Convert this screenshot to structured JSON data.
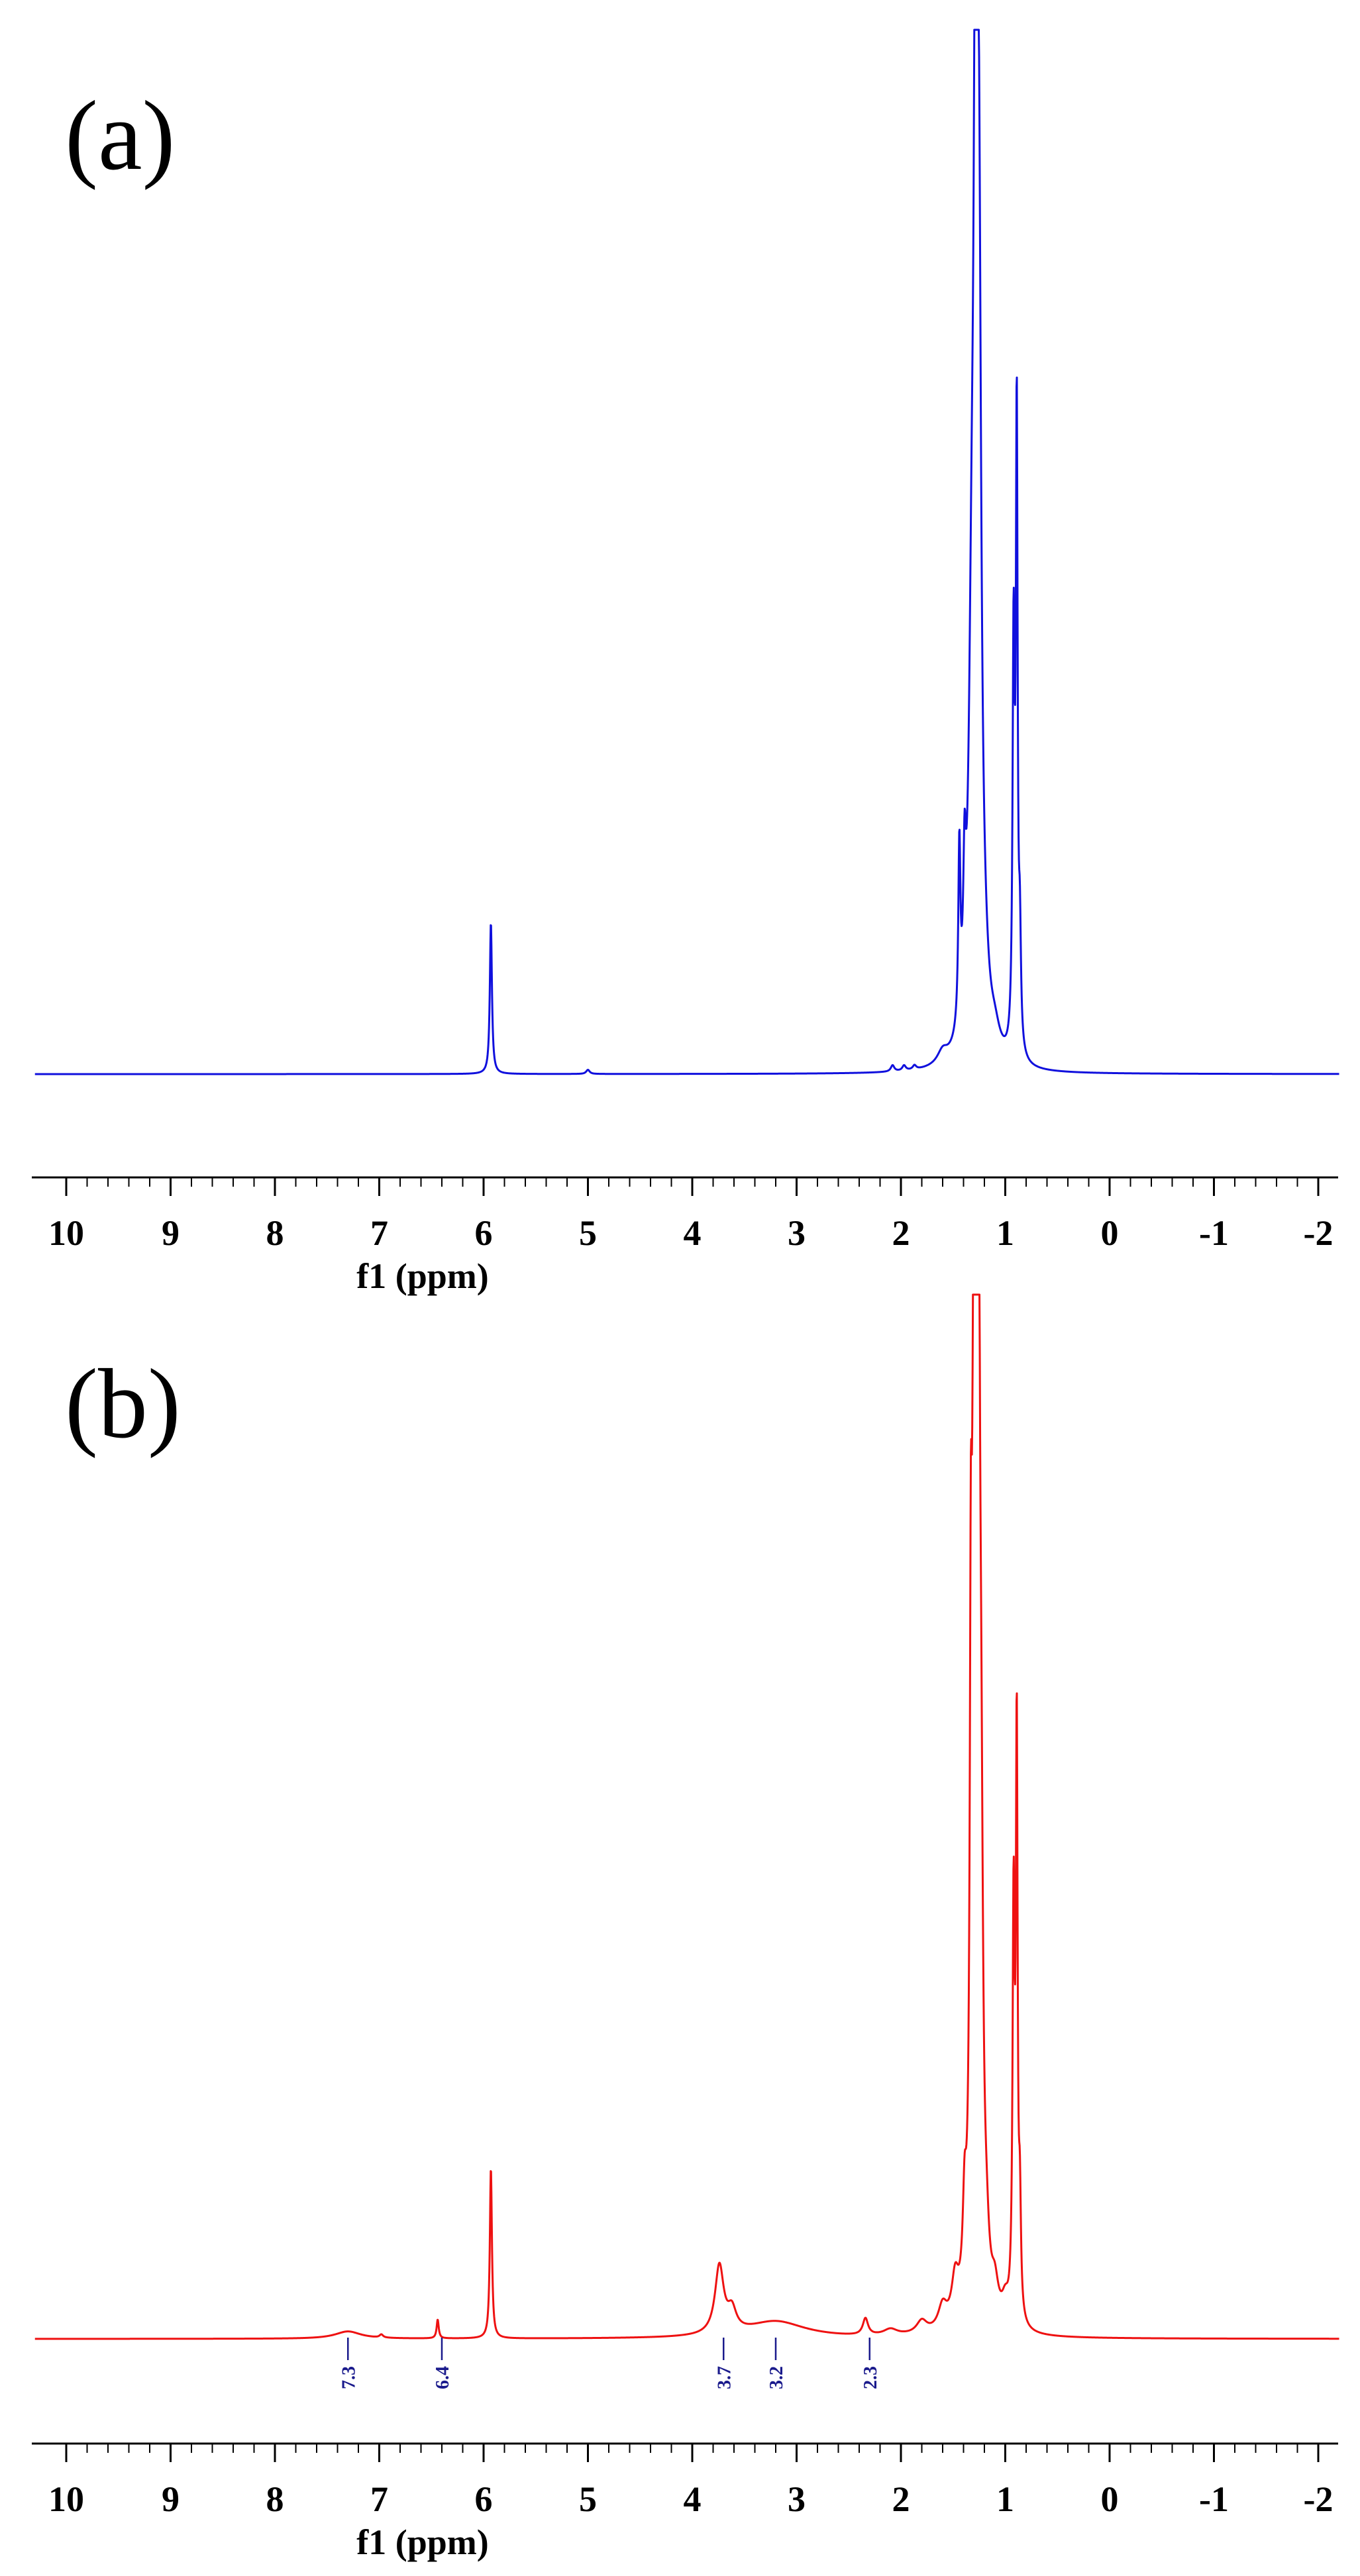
{
  "chart_data": [
    {
      "type": "line",
      "panel_label": "(a)",
      "xlabel": "f1 (ppm)",
      "ylabel": "",
      "x_reversed": true,
      "xlim": [
        10.3,
        -2.2
      ],
      "ylim": [
        0,
        1
      ],
      "x_ticks": [
        "10",
        "9",
        "8",
        "7",
        "6",
        "5",
        "4",
        "3",
        "2",
        "1",
        "0",
        "-1",
        "-2"
      ],
      "x_tick_values": [
        10,
        9,
        8,
        7,
        6,
        5,
        4,
        3,
        2,
        1,
        0,
        -1,
        -2
      ],
      "color": "#1010dd",
      "grid": false,
      "legend": "none",
      "peaks": [
        {
          "ppm": 5.93,
          "height": 0.145,
          "width": 0.012
        },
        {
          "ppm": 5.0,
          "height": 0.004,
          "width": 0.02
        },
        {
          "ppm": 2.08,
          "height": 0.006,
          "width": 0.02
        },
        {
          "ppm": 1.97,
          "height": 0.005,
          "width": 0.02
        },
        {
          "ppm": 1.87,
          "height": 0.004,
          "width": 0.02
        },
        {
          "ppm": 1.6,
          "height": 0.012,
          "width": 0.06
        },
        {
          "ppm": 1.44,
          "height": 0.17,
          "width": 0.012
        },
        {
          "ppm": 1.39,
          "height": 0.12,
          "width": 0.015
        },
        {
          "ppm": 1.32,
          "height": 0.35,
          "width": 0.035
        },
        {
          "ppm": 1.28,
          "height": 1.2,
          "width": 0.018
        },
        {
          "ppm": 1.25,
          "height": 0.55,
          "width": 0.025
        },
        {
          "ppm": 1.2,
          "height": 0.04,
          "width": 0.05
        },
        {
          "ppm": 1.1,
          "height": 0.02,
          "width": 0.06
        },
        {
          "ppm": 0.92,
          "height": 0.39,
          "width": 0.012
        },
        {
          "ppm": 0.89,
          "height": 0.6,
          "width": 0.01
        },
        {
          "ppm": 0.86,
          "height": 0.1,
          "width": 0.012
        }
      ]
    },
    {
      "type": "line",
      "panel_label": "(b)",
      "xlabel": "f1 (ppm)",
      "ylabel": "",
      "x_reversed": true,
      "xlim": [
        10.3,
        -2.2
      ],
      "ylim": [
        0,
        1
      ],
      "x_ticks": [
        "10",
        "9",
        "8",
        "7",
        "6",
        "5",
        "4",
        "3",
        "2",
        "1",
        "0",
        "-1",
        "-2"
      ],
      "x_tick_values": [
        10,
        9,
        8,
        7,
        6,
        5,
        4,
        3,
        2,
        1,
        0,
        -1,
        -2
      ],
      "color": "#ee1111",
      "grid": false,
      "legend": "none",
      "peak_labels": [
        {
          "text": "7.3",
          "ppm": 7.3
        },
        {
          "text": "6.4",
          "ppm": 6.4
        },
        {
          "text": "3.7",
          "ppm": 3.7
        },
        {
          "text": "3.2",
          "ppm": 3.2
        },
        {
          "text": "2.3",
          "ppm": 2.3
        }
      ],
      "peak_label_color": "#1a1a8c",
      "peaks": [
        {
          "ppm": 7.3,
          "height": 0.007,
          "width": 0.15
        },
        {
          "ppm": 6.98,
          "height": 0.003,
          "width": 0.02
        },
        {
          "ppm": 6.44,
          "height": 0.018,
          "width": 0.012
        },
        {
          "ppm": 5.93,
          "height": 0.163,
          "width": 0.012
        },
        {
          "ppm": 3.74,
          "height": 0.065,
          "width": 0.05
        },
        {
          "ppm": 3.62,
          "height": 0.02,
          "width": 0.05
        },
        {
          "ppm": 3.2,
          "height": 0.016,
          "width": 0.35
        },
        {
          "ppm": 2.34,
          "height": 0.016,
          "width": 0.03
        },
        {
          "ppm": 2.1,
          "height": 0.006,
          "width": 0.08
        },
        {
          "ppm": 1.8,
          "height": 0.012,
          "width": 0.06
        },
        {
          "ppm": 1.6,
          "height": 0.022,
          "width": 0.05
        },
        {
          "ppm": 1.48,
          "height": 0.04,
          "width": 0.04
        },
        {
          "ppm": 1.39,
          "height": 0.08,
          "width": 0.02
        },
        {
          "ppm": 1.33,
          "height": 0.47,
          "width": 0.012
        },
        {
          "ppm": 1.3,
          "height": 0.9,
          "width": 0.02
        },
        {
          "ppm": 1.26,
          "height": 1.1,
          "width": 0.018
        },
        {
          "ppm": 1.23,
          "height": 0.3,
          "width": 0.02
        },
        {
          "ppm": 1.18,
          "height": 0.04,
          "width": 0.03
        },
        {
          "ppm": 1.1,
          "height": 0.03,
          "width": 0.04
        },
        {
          "ppm": 1.0,
          "height": 0.02,
          "width": 0.04
        },
        {
          "ppm": 0.92,
          "height": 0.39,
          "width": 0.012
        },
        {
          "ppm": 0.89,
          "height": 0.55,
          "width": 0.01
        },
        {
          "ppm": 0.86,
          "height": 0.1,
          "width": 0.012
        }
      ]
    }
  ]
}
